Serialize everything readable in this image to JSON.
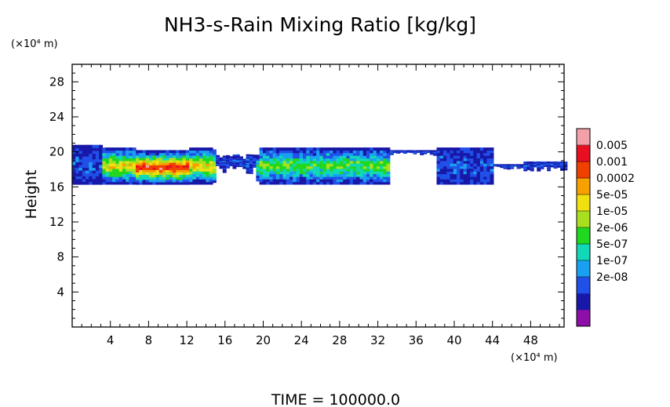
{
  "chart_data": {
    "type": "heatmap",
    "title": "NH3-s-Rain Mixing Ratio [kg/kg]",
    "ylabel": "Height",
    "xlabel": "",
    "x_unit": "(×10⁴ m)",
    "y_unit": "(×10⁴ m)",
    "xlim": [
      0,
      51.5
    ],
    "ylim": [
      0,
      30
    ],
    "x_ticks": [
      "4",
      "8",
      "12",
      "16",
      "20",
      "24",
      "28",
      "32",
      "36",
      "40",
      "44",
      "48"
    ],
    "x_tick_values": [
      4,
      8,
      12,
      16,
      20,
      24,
      28,
      32,
      36,
      40,
      44,
      48
    ],
    "y_ticks": [
      "4",
      "8",
      "12",
      "16",
      "20",
      "24",
      "28"
    ],
    "y_tick_values": [
      4,
      8,
      12,
      16,
      20,
      24,
      28
    ],
    "colorbar": {
      "labels": [
        "0.005",
        "0.001",
        "0.0002",
        "5e-05",
        "1e-05",
        "2e-06",
        "5e-07",
        "1e-07",
        "2e-08"
      ],
      "colors": [
        "#8e0fa8",
        "#1818a8",
        "#2050e8",
        "#1aa0f0",
        "#10d8b8",
        "#20d820",
        "#a8e020",
        "#f0e010",
        "#f8a000",
        "#f04000",
        "#e81020",
        "#f4a0a8"
      ]
    },
    "layer_regions": [
      {
        "x": [
          0,
          51.5
        ],
        "y_bottom": 16.3,
        "y_top": 20.8,
        "level": "low"
      },
      {
        "x": [
          3,
          15
        ],
        "y_bottom": 16.3,
        "y_top": 20.5,
        "level": "high"
      },
      {
        "x": [
          6.5,
          12
        ],
        "y_bottom": 16.6,
        "y_top": 18.8,
        "level": "max"
      },
      {
        "x": [
          19,
          33
        ],
        "y_bottom": 16.5,
        "y_top": 20.0,
        "level": "mid"
      },
      {
        "x": [
          38,
          44
        ],
        "y_bottom": 19.0,
        "y_top": 20.0,
        "level": "low"
      }
    ],
    "annotation": "TIME  =  100000.0"
  }
}
